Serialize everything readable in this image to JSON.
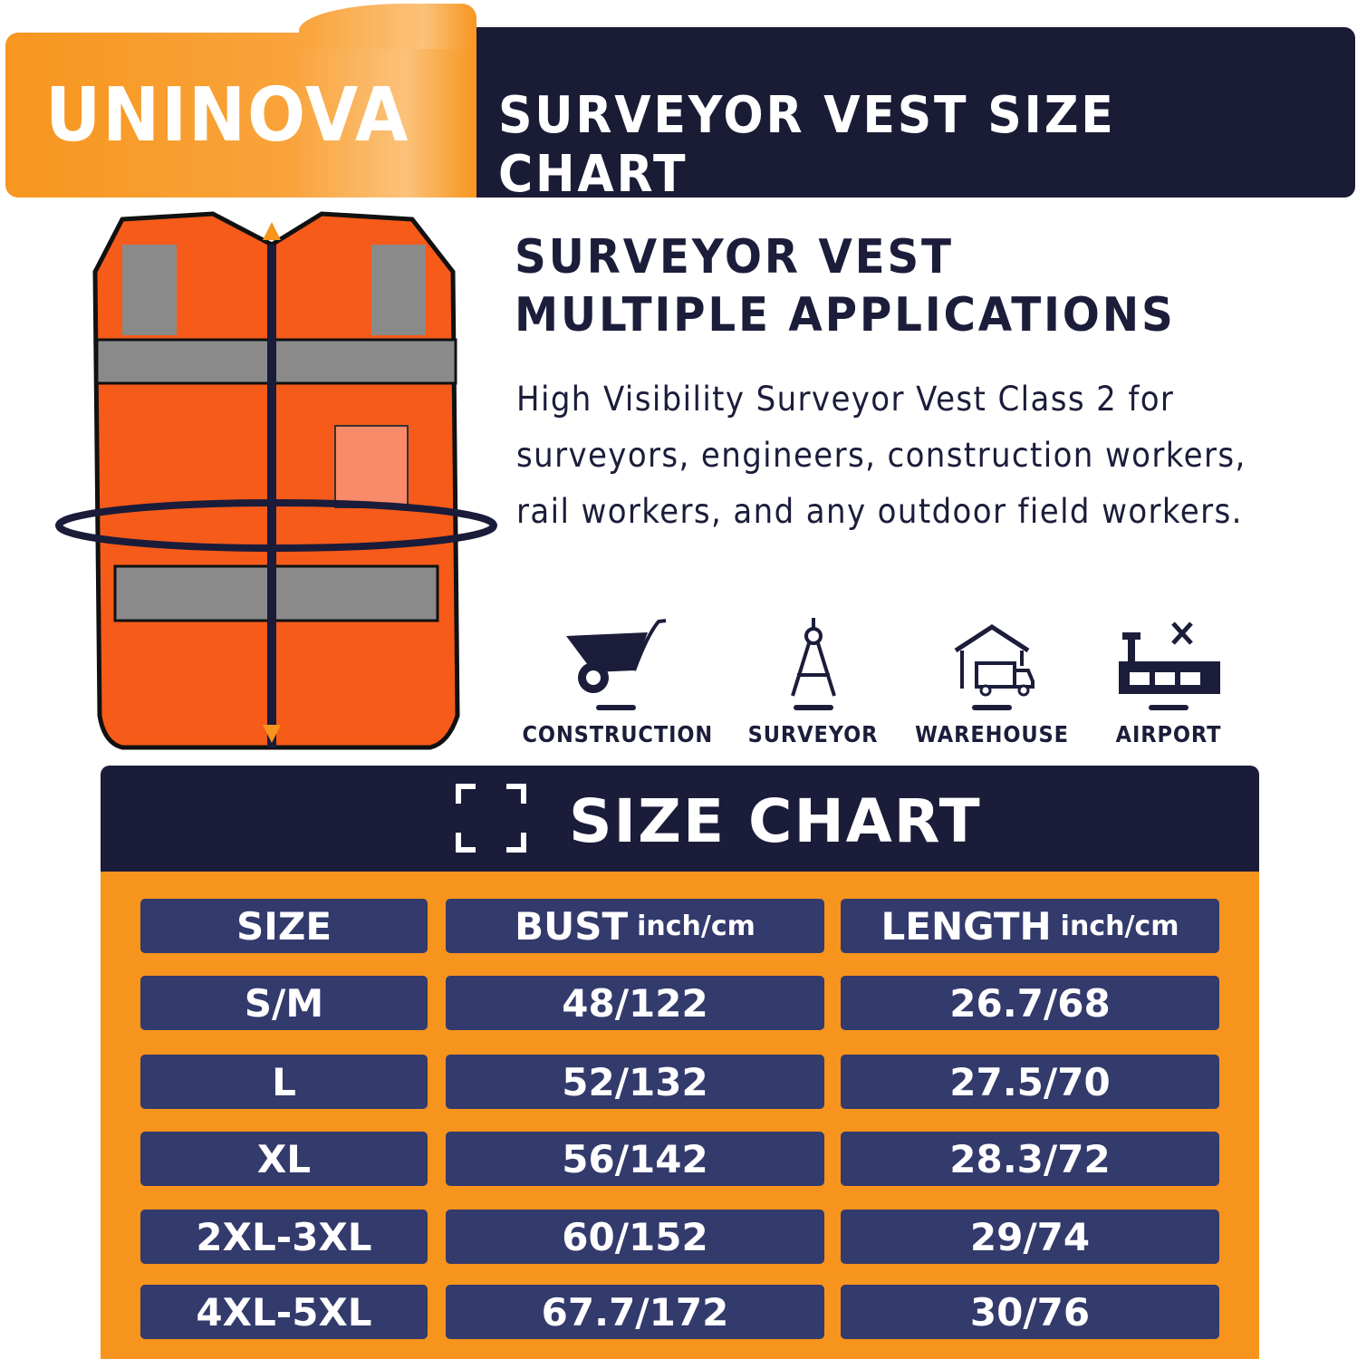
{
  "banner": {
    "brand": "UNINOVA",
    "title": "SURVEYOR VEST SIZE CHART"
  },
  "intro": {
    "heading_line1": "SURVEYOR VEST",
    "heading_line2": "MULTIPLE APPLICATIONS",
    "description": "High Visibility Surveyor Vest Class 2 for surveyors, engineers, construction workers, rail workers, and any outdoor field workers."
  },
  "applications": [
    {
      "label": "CONSTRUCTION",
      "icon": "wheelbarrow-icon"
    },
    {
      "label": "SURVEYOR",
      "icon": "compass-icon"
    },
    {
      "label": "WAREHOUSE",
      "icon": "warehouse-truck-icon"
    },
    {
      "label": "AIRPORT",
      "icon": "airport-icon"
    }
  ],
  "size_chart": {
    "title": "SIZE CHART",
    "headers": [
      {
        "label": "SIZE",
        "unit": ""
      },
      {
        "label": "BUST",
        "unit": "inch/cm"
      },
      {
        "label": "LENGTH",
        "unit": "inch/cm"
      }
    ],
    "rows": [
      [
        "S/M",
        "48/122",
        "26.7/68"
      ],
      [
        "L",
        "52/132",
        "27.5/70"
      ],
      [
        "XL",
        "56/142",
        "28.3/72"
      ],
      [
        "2XL-3XL",
        "60/152",
        "29/74"
      ],
      [
        "4XL-5XL",
        "67.7/172",
        "30/76"
      ]
    ]
  },
  "colors": {
    "orange": "#f7941d",
    "navy": "#1a1c3a",
    "cell": "#333a6c"
  }
}
